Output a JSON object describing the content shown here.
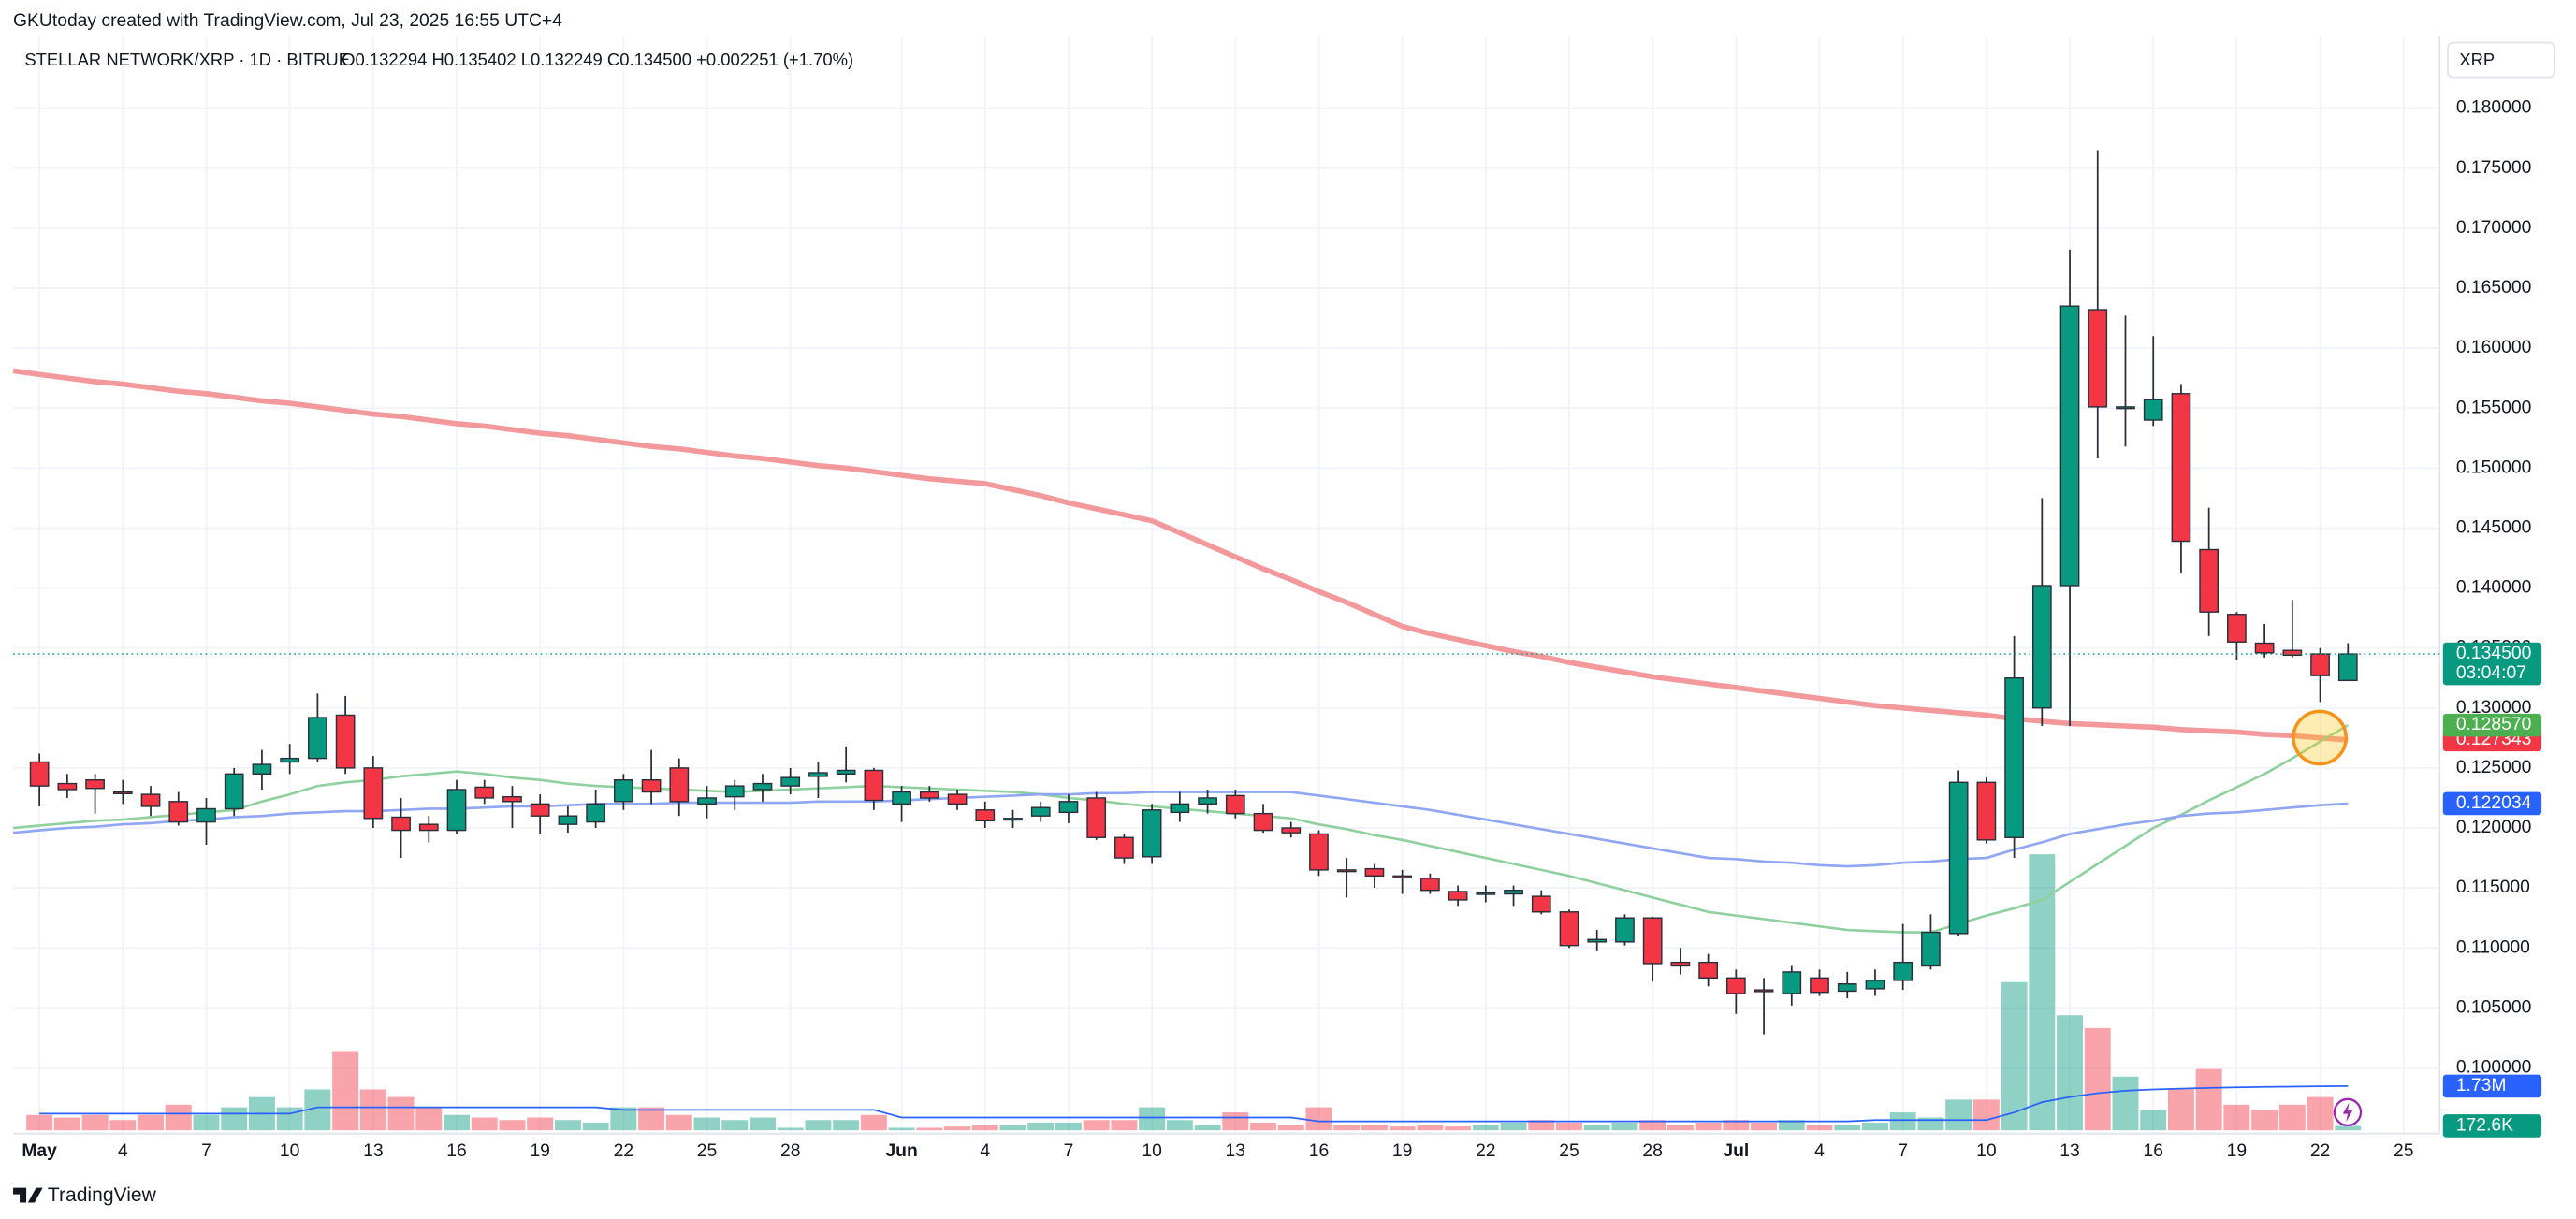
{
  "header": {
    "credit": "GKUtoday created with TradingView.com, Jul 23, 2025 16:55 UTC+4",
    "symbol": "STELLAR NETWORK/XRP · 1D · BITRUE",
    "ohlc_text": "O0.132294 H0.135402 L0.132249 C0.134500 +0.002251 (+1.70%)",
    "currency": "XRP",
    "brand": "TradingView"
  },
  "chart_data": {
    "type": "candlestick",
    "up_color": "#089981",
    "down_color": "#f23645",
    "volume_up_color": "rgba(8,153,129,0.45)",
    "volume_down_color": "rgba(242,54,69,0.45)",
    "grid": true,
    "ylim": [
      0.0948,
      0.186
    ],
    "yticks": [
      {
        "value": 0.1,
        "label": "0.100000"
      },
      {
        "value": 0.105,
        "label": "0.105000"
      },
      {
        "value": 0.11,
        "label": "0.110000"
      },
      {
        "value": 0.115,
        "label": "0.115000"
      },
      {
        "value": 0.12,
        "label": "0.120000"
      },
      {
        "value": 0.125,
        "label": "0.125000"
      },
      {
        "value": 0.13,
        "label": "0.130000"
      },
      {
        "value": 0.135,
        "label": "0.135000"
      },
      {
        "value": 0.14,
        "label": "0.140000"
      },
      {
        "value": 0.145,
        "label": "0.145000"
      },
      {
        "value": 0.15,
        "label": "0.150000"
      },
      {
        "value": 0.155,
        "label": "0.155000"
      },
      {
        "value": 0.16,
        "label": "0.160000"
      },
      {
        "value": 0.165,
        "label": "0.165000"
      },
      {
        "value": 0.17,
        "label": "0.170000"
      },
      {
        "value": 0.175,
        "label": "0.175000"
      },
      {
        "value": 0.18,
        "label": "0.180000"
      }
    ],
    "xticks": [
      {
        "value": 0,
        "label": "May"
      },
      {
        "value": 3,
        "label": "4"
      },
      {
        "value": 6,
        "label": "7"
      },
      {
        "value": 9,
        "label": "10"
      },
      {
        "value": 12,
        "label": "13"
      },
      {
        "value": 15,
        "label": "16"
      },
      {
        "value": 18,
        "label": "19"
      },
      {
        "value": 21,
        "label": "22"
      },
      {
        "value": 24,
        "label": "25"
      },
      {
        "value": 27,
        "label": "28"
      },
      {
        "value": 31,
        "label": "Jun"
      },
      {
        "value": 34,
        "label": "4"
      },
      {
        "value": 37,
        "label": "7"
      },
      {
        "value": 40,
        "label": "10"
      },
      {
        "value": 43,
        "label": "13"
      },
      {
        "value": 46,
        "label": "16"
      },
      {
        "value": 49,
        "label": "19"
      },
      {
        "value": 52,
        "label": "22"
      },
      {
        "value": 55,
        "label": "25"
      },
      {
        "value": 58,
        "label": "28"
      },
      {
        "value": 61,
        "label": "Jul"
      },
      {
        "value": 64,
        "label": "4"
      },
      {
        "value": 67,
        "label": "7"
      },
      {
        "value": 70,
        "label": "10"
      },
      {
        "value": 73,
        "label": "13"
      },
      {
        "value": 76,
        "label": "16"
      },
      {
        "value": 79,
        "label": "19"
      },
      {
        "value": 82,
        "label": "22"
      },
      {
        "value": 85,
        "label": "25"
      }
    ],
    "ohlc": [
      [
        0.1255,
        0.1262,
        0.1218,
        0.1235
      ],
      [
        0.1237,
        0.1245,
        0.1225,
        0.1232
      ],
      [
        0.124,
        0.1245,
        0.1212,
        0.1233
      ],
      [
        0.123,
        0.124,
        0.122,
        0.1229
      ],
      [
        0.1228,
        0.1235,
        0.121,
        0.1218
      ],
      [
        0.1222,
        0.123,
        0.1202,
        0.1205
      ],
      [
        0.1205,
        0.1225,
        0.1186,
        0.1216
      ],
      [
        0.1216,
        0.125,
        0.121,
        0.1245
      ],
      [
        0.1245,
        0.1265,
        0.1232,
        0.1253
      ],
      [
        0.1255,
        0.127,
        0.1245,
        0.1258
      ],
      [
        0.1258,
        0.1312,
        0.1255,
        0.1292
      ],
      [
        0.1294,
        0.131,
        0.1245,
        0.125
      ],
      [
        0.125,
        0.126,
        0.12,
        0.1208
      ],
      [
        0.1209,
        0.1225,
        0.1175,
        0.1198
      ],
      [
        0.1203,
        0.121,
        0.1188,
        0.1198
      ],
      [
        0.1198,
        0.124,
        0.1195,
        0.1232
      ],
      [
        0.1234,
        0.124,
        0.122,
        0.1225
      ],
      [
        0.1226,
        0.1235,
        0.12,
        0.1222
      ],
      [
        0.122,
        0.1228,
        0.1195,
        0.121
      ],
      [
        0.1203,
        0.1218,
        0.1196,
        0.121
      ],
      [
        0.1205,
        0.1232,
        0.12,
        0.122
      ],
      [
        0.1222,
        0.1245,
        0.1215,
        0.124
      ],
      [
        0.124,
        0.1265,
        0.122,
        0.123
      ],
      [
        0.125,
        0.1258,
        0.121,
        0.1222
      ],
      [
        0.122,
        0.1235,
        0.1208,
        0.1225
      ],
      [
        0.1226,
        0.124,
        0.1215,
        0.1235
      ],
      [
        0.1232,
        0.1245,
        0.1222,
        0.1237
      ],
      [
        0.1235,
        0.125,
        0.1228,
        0.1242
      ],
      [
        0.1243,
        0.1255,
        0.1225,
        0.1246
      ],
      [
        0.1245,
        0.1268,
        0.1238,
        0.1248
      ],
      [
        0.1248,
        0.125,
        0.1215,
        0.1223
      ],
      [
        0.122,
        0.1235,
        0.1205,
        0.123
      ],
      [
        0.123,
        0.1235,
        0.1222,
        0.1225
      ],
      [
        0.1228,
        0.1232,
        0.1215,
        0.122
      ],
      [
        0.1215,
        0.1222,
        0.12,
        0.1206
      ],
      [
        0.1208,
        0.1215,
        0.12,
        0.1208
      ],
      [
        0.121,
        0.1222,
        0.1205,
        0.1217
      ],
      [
        0.1213,
        0.1228,
        0.1204,
        0.1222
      ],
      [
        0.1225,
        0.123,
        0.119,
        0.1192
      ],
      [
        0.1192,
        0.1195,
        0.117,
        0.1175
      ],
      [
        0.1176,
        0.122,
        0.117,
        0.1215
      ],
      [
        0.1213,
        0.123,
        0.1205,
        0.122
      ],
      [
        0.122,
        0.1232,
        0.1212,
        0.1225
      ],
      [
        0.1227,
        0.1232,
        0.1208,
        0.1212
      ],
      [
        0.1212,
        0.122,
        0.1196,
        0.1198
      ],
      [
        0.12,
        0.1205,
        0.1192,
        0.1196
      ],
      [
        0.1195,
        0.1198,
        0.116,
        0.1165
      ],
      [
        0.1165,
        0.1175,
        0.1142,
        0.1164
      ],
      [
        0.1166,
        0.117,
        0.115,
        0.116
      ],
      [
        0.116,
        0.1165,
        0.1145,
        0.1159
      ],
      [
        0.1158,
        0.1162,
        0.1145,
        0.1148
      ],
      [
        0.1147,
        0.1152,
        0.1135,
        0.114
      ],
      [
        0.1145,
        0.1152,
        0.1138,
        0.1146
      ],
      [
        0.1145,
        0.1152,
        0.1135,
        0.1148
      ],
      [
        0.1143,
        0.1148,
        0.1128,
        0.113
      ],
      [
        0.113,
        0.1132,
        0.11,
        0.1102
      ],
      [
        0.1105,
        0.1115,
        0.1098,
        0.1107
      ],
      [
        0.1105,
        0.1128,
        0.1102,
        0.1125
      ],
      [
        0.1125,
        0.1126,
        0.1072,
        0.1087
      ],
      [
        0.1088,
        0.11,
        0.1078,
        0.1085
      ],
      [
        0.1088,
        0.1095,
        0.1068,
        0.1075
      ],
      [
        0.1075,
        0.1082,
        0.1045,
        0.1062
      ],
      [
        0.1065,
        0.1075,
        0.1028,
        0.1064
      ],
      [
        0.1062,
        0.1085,
        0.1052,
        0.108
      ],
      [
        0.1075,
        0.1082,
        0.106,
        0.1063
      ],
      [
        0.1064,
        0.108,
        0.1058,
        0.107
      ],
      [
        0.1066,
        0.1082,
        0.106,
        0.1073
      ],
      [
        0.1073,
        0.112,
        0.1065,
        0.1088
      ],
      [
        0.1085,
        0.1128,
        0.1082,
        0.1113
      ],
      [
        0.1112,
        0.1248,
        0.111,
        0.1238
      ],
      [
        0.1238,
        0.1242,
        0.1187,
        0.119
      ],
      [
        0.1192,
        0.136,
        0.1175,
        0.1325
      ],
      [
        0.13,
        0.1475,
        0.1285,
        0.1402
      ],
      [
        0.1402,
        0.1682,
        0.1285,
        0.1635
      ],
      [
        0.1632,
        0.1765,
        0.1508,
        0.1551
      ],
      [
        0.155,
        0.1627,
        0.1518,
        0.1551
      ],
      [
        0.154,
        0.161,
        0.1535,
        0.1557
      ],
      [
        0.1562,
        0.157,
        0.1412,
        0.1439
      ],
      [
        0.1432,
        0.1467,
        0.136,
        0.138
      ],
      [
        0.1378,
        0.138,
        0.134,
        0.1355
      ],
      [
        0.1354,
        0.137,
        0.1342,
        0.1346
      ],
      [
        0.1348,
        0.139,
        0.1342,
        0.1344
      ],
      [
        0.1345,
        0.135,
        0.1305,
        0.1327
      ],
      [
        0.132294,
        0.135402,
        0.132249,
        0.1345
      ]
    ],
    "last_price_label": "0.134500",
    "countdown": "03:04:07",
    "overlays": [
      {
        "color": "#f4999b",
        "width": 3.2,
        "label_color": "#f23645",
        "last_label": "0.127343",
        "values": [
          0.1578,
          0.1575,
          0.1572,
          0.157,
          0.1567,
          0.1564,
          0.1562,
          0.1559,
          0.1556,
          0.1554,
          0.1551,
          0.1548,
          0.1545,
          0.1543,
          0.154,
          0.1537,
          0.1535,
          0.1532,
          0.1529,
          0.1527,
          0.1524,
          0.1521,
          0.1518,
          0.1516,
          0.1513,
          0.151,
          0.1508,
          0.1505,
          0.1502,
          0.15,
          0.1497,
          0.1494,
          0.1491,
          0.1489,
          0.1487,
          0.1482,
          0.1477,
          0.1471,
          0.1466,
          0.1461,
          0.1456,
          0.1446,
          0.1436,
          0.1426,
          0.1416,
          0.1407,
          0.1397,
          0.1388,
          0.1378,
          0.1368,
          0.1362,
          0.1357,
          0.1352,
          0.1347,
          0.1343,
          0.1338,
          0.1334,
          0.133,
          0.1326,
          0.1323,
          0.132,
          0.1317,
          0.1314,
          0.1311,
          0.1308,
          0.1305,
          0.1302,
          0.13,
          0.1298,
          0.1296,
          0.1294,
          0.1291,
          0.1289,
          0.1287,
          0.1286,
          0.1285,
          0.1284,
          0.1282,
          0.1281,
          0.128,
          0.1278,
          0.1277,
          0.1275,
          0.127343
        ]
      },
      {
        "color": "#8fd19e",
        "width": 1.5,
        "label_color": "#4caf50",
        "last_label": "0.128570",
        "values": [
          0.1202,
          0.1204,
          0.1206,
          0.1207,
          0.1209,
          0.1211,
          0.1213,
          0.1215,
          0.1222,
          0.1228,
          0.1235,
          0.1238,
          0.124,
          0.1243,
          0.1245,
          0.1247,
          0.1245,
          0.1242,
          0.124,
          0.1237,
          0.1235,
          0.1234,
          0.1233,
          0.1232,
          0.1231,
          0.123,
          0.1231,
          0.1232,
          0.1233,
          0.1234,
          0.1235,
          0.1234,
          0.1233,
          0.1232,
          0.1231,
          0.123,
          0.1228,
          0.1225,
          0.1223,
          0.122,
          0.1218,
          0.1216,
          0.1214,
          0.1212,
          0.121,
          0.1208,
          0.1203,
          0.1199,
          0.1194,
          0.119,
          0.1185,
          0.118,
          0.1175,
          0.117,
          0.1165,
          0.116,
          0.1154,
          0.1148,
          0.1142,
          0.1136,
          0.113,
          0.1127,
          0.1124,
          0.1121,
          0.1118,
          0.1115,
          0.1114,
          0.1113,
          0.1113,
          0.112,
          0.1127,
          0.1133,
          0.114,
          0.1155,
          0.117,
          0.1185,
          0.12,
          0.1211,
          0.1223,
          0.1234,
          0.1245,
          0.1258,
          0.1272,
          0.12857
        ]
      },
      {
        "color": "#8fa6f5",
        "width": 1.5,
        "label_color": "#2962ff",
        "last_label": "0.122034",
        "values": [
          0.1198,
          0.12,
          0.1201,
          0.1203,
          0.1204,
          0.1206,
          0.1207,
          0.1209,
          0.121,
          0.1212,
          0.1213,
          0.1214,
          0.1214,
          0.1215,
          0.1216,
          0.1216,
          0.1217,
          0.1218,
          0.1218,
          0.1219,
          0.122,
          0.122,
          0.122,
          0.1221,
          0.1221,
          0.1221,
          0.1221,
          0.1221,
          0.1222,
          0.1222,
          0.1222,
          0.1223,
          0.1224,
          0.1225,
          0.1226,
          0.1227,
          0.1228,
          0.1228,
          0.1229,
          0.1229,
          0.123,
          0.123,
          0.123,
          0.123,
          0.123,
          0.123,
          0.1227,
          0.1224,
          0.1221,
          0.1218,
          0.1215,
          0.1211,
          0.1207,
          0.1203,
          0.1199,
          0.1195,
          0.1191,
          0.1187,
          0.1183,
          0.1179,
          0.1175,
          0.1174,
          0.1172,
          0.1171,
          0.1169,
          0.1168,
          0.1169,
          0.1171,
          0.1172,
          0.1174,
          0.1175,
          0.1182,
          0.1188,
          0.1195,
          0.1199,
          0.1203,
          0.1206,
          0.121,
          0.1212,
          0.1213,
          0.1215,
          0.1217,
          0.1219,
          0.122034
        ]
      }
    ],
    "volume": [
      600000,
      500000,
      600000,
      400000,
      600000,
      1000000,
      600000,
      900000,
      1300000,
      900000,
      1600000,
      3100000,
      1600000,
      1300000,
      900000,
      600000,
      500000,
      400000,
      500000,
      400000,
      300000,
      900000,
      900000,
      600000,
      500000,
      400000,
      500000,
      100000,
      400000,
      400000,
      600000,
      100000,
      100000,
      150000,
      200000,
      200000,
      300000,
      300000,
      400000,
      400000,
      900000,
      400000,
      200000,
      700000,
      300000,
      200000,
      900000,
      200000,
      200000,
      150000,
      200000,
      150000,
      200000,
      300000,
      400000,
      300000,
      200000,
      300000,
      400000,
      200000,
      300000,
      400000,
      300000,
      400000,
      200000,
      200000,
      300000,
      700000,
      500000,
      1200000,
      1200000,
      5800000,
      10800000,
      4500000,
      4000000,
      2100000,
      800000,
      1600000,
      2400000,
      1000000,
      800000,
      1000000,
      1300000,
      172600
    ],
    "volume_last_label": "172.6K",
    "volume_ma": {
      "color": "#2962ff",
      "label_color": "#2962ff",
      "last_label": "1.73M",
      "values": [
        650000,
        650000,
        650000,
        650000,
        650000,
        650000,
        650000,
        650000,
        650000,
        650000,
        900000,
        900000,
        900000,
        900000,
        900000,
        900000,
        900000,
        900000,
        900000,
        900000,
        900000,
        800000,
        800000,
        800000,
        800000,
        800000,
        800000,
        800000,
        800000,
        800000,
        800000,
        500000,
        500000,
        500000,
        500000,
        500000,
        500000,
        500000,
        500000,
        500000,
        500000,
        500000,
        500000,
        500000,
        500000,
        500000,
        350000,
        350000,
        350000,
        350000,
        350000,
        350000,
        350000,
        350000,
        350000,
        350000,
        350000,
        350000,
        350000,
        350000,
        350000,
        350000,
        350000,
        350000,
        350000,
        350000,
        400000,
        400000,
        400000,
        400000,
        400000,
        700000,
        1100000,
        1300000,
        1450000,
        1550000,
        1600000,
        1630000,
        1660000,
        1680000,
        1700000,
        1710000,
        1720000,
        1730000
      ]
    }
  }
}
